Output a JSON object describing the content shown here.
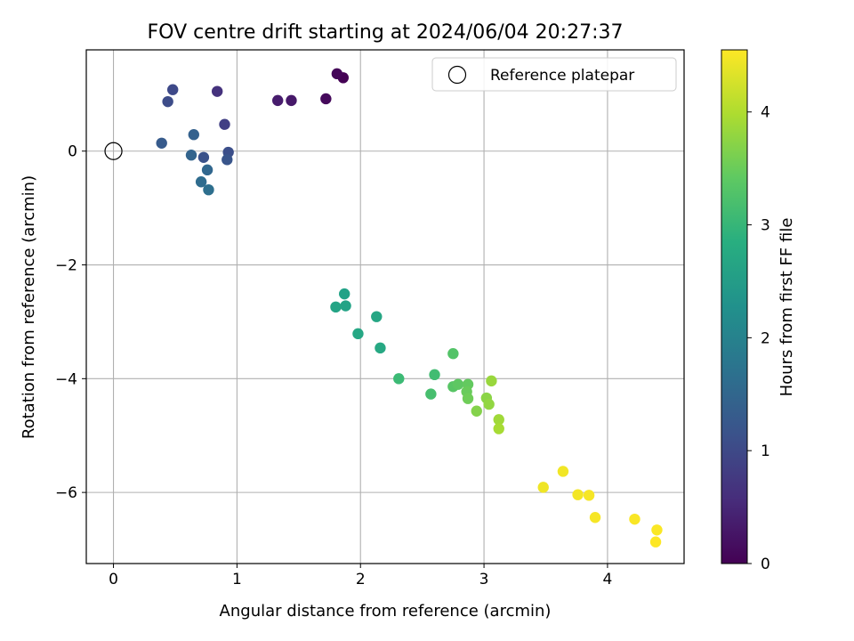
{
  "chart_data": {
    "type": "scatter",
    "title": "FOV centre drift starting at 2024/06/04 20:27:37",
    "xlabel": "Angular distance from reference (arcmin)",
    "ylabel": "Rotation from reference (arcmin)",
    "colorbar_label": "Hours from first FF file",
    "xlim": [
      -0.22,
      4.62
    ],
    "ylim": [
      -7.25,
      1.78
    ],
    "clim": [
      0,
      4.55
    ],
    "xticks": [
      0,
      1,
      2,
      3,
      4
    ],
    "yticks": [
      0,
      -2,
      -4,
      -6
    ],
    "colorbar_ticks": [
      0,
      1,
      2,
      3,
      4
    ],
    "grid": true,
    "colormap": "viridis",
    "legend": {
      "placement": "top-right",
      "entries": [
        "Reference platepar"
      ]
    },
    "reference_point": {
      "x": 0,
      "y": 0,
      "label": "Reference platepar"
    },
    "points": [
      {
        "x": 1.86,
        "y": 1.29,
        "t": 0.0
      },
      {
        "x": 1.81,
        "y": 1.36,
        "t": 0.05
      },
      {
        "x": 1.72,
        "y": 0.92,
        "t": 0.1
      },
      {
        "x": 1.44,
        "y": 0.89,
        "t": 0.3
      },
      {
        "x": 1.33,
        "y": 0.89,
        "t": 0.35
      },
      {
        "x": 0.84,
        "y": 1.05,
        "t": 0.65
      },
      {
        "x": 0.9,
        "y": 0.47,
        "t": 0.85
      },
      {
        "x": 0.48,
        "y": 1.08,
        "t": 1.0
      },
      {
        "x": 0.44,
        "y": 0.87,
        "t": 1.05
      },
      {
        "x": 0.93,
        "y": -0.02,
        "t": 1.1
      },
      {
        "x": 0.73,
        "y": -0.11,
        "t": 1.15
      },
      {
        "x": 0.92,
        "y": -0.15,
        "t": 1.2
      },
      {
        "x": 0.39,
        "y": 0.14,
        "t": 1.3
      },
      {
        "x": 0.65,
        "y": 0.29,
        "t": 1.4
      },
      {
        "x": 0.63,
        "y": -0.07,
        "t": 1.45
      },
      {
        "x": 0.76,
        "y": -0.33,
        "t": 1.5
      },
      {
        "x": 0.71,
        "y": -0.54,
        "t": 1.6
      },
      {
        "x": 0.77,
        "y": -0.68,
        "t": 1.65
      },
      {
        "x": 1.87,
        "y": -2.51,
        "t": 2.6
      },
      {
        "x": 1.88,
        "y": -2.72,
        "t": 2.62
      },
      {
        "x": 1.8,
        "y": -2.74,
        "t": 2.65
      },
      {
        "x": 2.13,
        "y": -2.91,
        "t": 2.68
      },
      {
        "x": 1.98,
        "y": -3.21,
        "t": 2.7
      },
      {
        "x": 2.16,
        "y": -3.46,
        "t": 2.72
      },
      {
        "x": 2.31,
        "y": -4.0,
        "t": 3.1
      },
      {
        "x": 2.6,
        "y": -3.93,
        "t": 3.15
      },
      {
        "x": 2.57,
        "y": -4.27,
        "t": 3.2
      },
      {
        "x": 2.75,
        "y": -3.56,
        "t": 3.3
      },
      {
        "x": 2.75,
        "y": -4.14,
        "t": 3.35
      },
      {
        "x": 2.79,
        "y": -4.1,
        "t": 3.4
      },
      {
        "x": 2.87,
        "y": -4.1,
        "t": 3.45
      },
      {
        "x": 2.86,
        "y": -4.23,
        "t": 3.5
      },
      {
        "x": 2.87,
        "y": -4.35,
        "t": 3.55
      },
      {
        "x": 2.94,
        "y": -4.57,
        "t": 3.7
      },
      {
        "x": 3.02,
        "y": -4.34,
        "t": 3.75
      },
      {
        "x": 3.04,
        "y": -4.45,
        "t": 3.8
      },
      {
        "x": 3.06,
        "y": -4.04,
        "t": 3.85
      },
      {
        "x": 3.12,
        "y": -4.72,
        "t": 3.9
      },
      {
        "x": 3.12,
        "y": -4.88,
        "t": 3.95
      },
      {
        "x": 3.48,
        "y": -5.91,
        "t": 4.45
      },
      {
        "x": 3.64,
        "y": -5.63,
        "t": 4.47
      },
      {
        "x": 3.76,
        "y": -6.04,
        "t": 4.48
      },
      {
        "x": 3.85,
        "y": -6.05,
        "t": 4.5
      },
      {
        "x": 3.9,
        "y": -6.44,
        "t": 4.5
      },
      {
        "x": 4.22,
        "y": -6.47,
        "t": 4.52
      },
      {
        "x": 4.4,
        "y": -6.66,
        "t": 4.53
      },
      {
        "x": 4.39,
        "y": -6.87,
        "t": 4.55
      }
    ]
  }
}
